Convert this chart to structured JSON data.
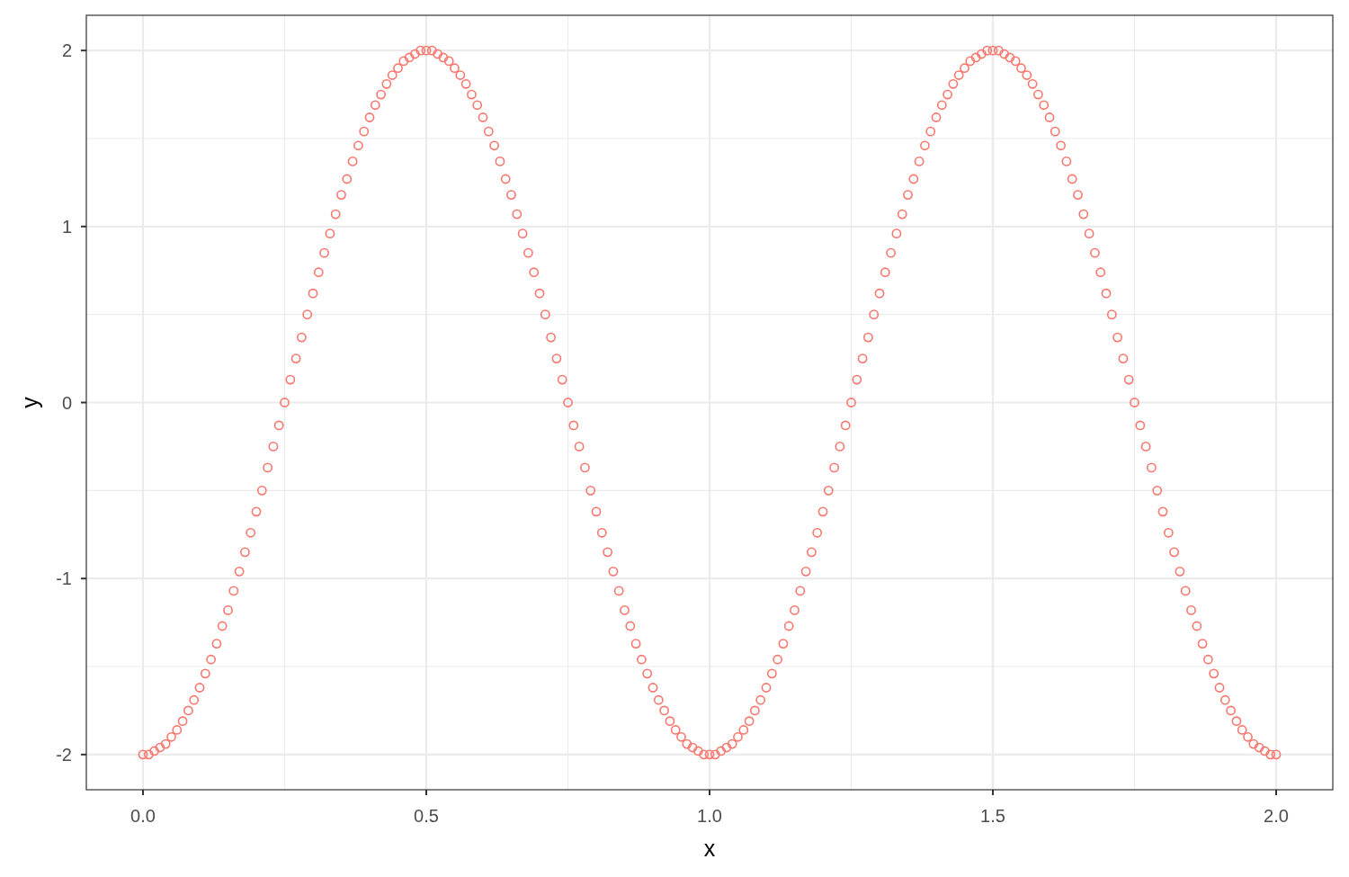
{
  "chart_data": {
    "type": "scatter",
    "xlabel": "x",
    "ylabel": "y",
    "xlim": [
      -0.1,
      2.1
    ],
    "ylim": [
      -2.2,
      2.2
    ],
    "xticks": [
      {
        "value": 0,
        "label": "0.0"
      },
      0.5,
      {
        "value": 1,
        "label": "1.0"
      },
      1.5,
      {
        "value": 2,
        "label": "2.0"
      }
    ],
    "yticks": [
      -2,
      -1,
      0,
      1,
      2
    ],
    "grid": true,
    "marker": "circle",
    "x": [
      0,
      0.01,
      0.02,
      0.03,
      0.04,
      0.05,
      0.06,
      0.07,
      0.08,
      0.09,
      0.1,
      0.11,
      0.12,
      0.13,
      0.14,
      0.15,
      0.16,
      0.17,
      0.18,
      0.19,
      0.2,
      0.21,
      0.22,
      0.23,
      0.24,
      0.25,
      0.26,
      0.27,
      0.28,
      0.29,
      0.3,
      0.31,
      0.32,
      0.33,
      0.34,
      0.35,
      0.36,
      0.37,
      0.38,
      0.39,
      0.4,
      0.41,
      0.42,
      0.43,
      0.44,
      0.45,
      0.46,
      0.47,
      0.48,
      0.49,
      0.5,
      0.51,
      0.52,
      0.53,
      0.54,
      0.55,
      0.56,
      0.57,
      0.58,
      0.59,
      0.6,
      0.61,
      0.62,
      0.63,
      0.64,
      0.65,
      0.66,
      0.67,
      0.68,
      0.69,
      0.7,
      0.71,
      0.72,
      0.73,
      0.74,
      0.75,
      0.76,
      0.77,
      0.78,
      0.79,
      0.8,
      0.81,
      0.82,
      0.83,
      0.84,
      0.85,
      0.86,
      0.87,
      0.88,
      0.89,
      0.9,
      0.91,
      0.92,
      0.93,
      0.94,
      0.95,
      0.96,
      0.97,
      0.98,
      0.99,
      1,
      1.01,
      1.02,
      1.03,
      1.04,
      1.05,
      1.06,
      1.07,
      1.08,
      1.09,
      1.1,
      1.11,
      1.12,
      1.13,
      1.14,
      1.15,
      1.16,
      1.17,
      1.18,
      1.19,
      1.2,
      1.21,
      1.22,
      1.23,
      1.24,
      1.25,
      1.26,
      1.27,
      1.28,
      1.29,
      1.3,
      1.31,
      1.32,
      1.33,
      1.34,
      1.35,
      1.36,
      1.37,
      1.38,
      1.39,
      1.4,
      1.41,
      1.42,
      1.43,
      1.44,
      1.45,
      1.46,
      1.47,
      1.48,
      1.49,
      1.5,
      1.51,
      1.52,
      1.53,
      1.54,
      1.55,
      1.56,
      1.57,
      1.58,
      1.59,
      1.6,
      1.61,
      1.62,
      1.63,
      1.64,
      1.65,
      1.66,
      1.67,
      1.68,
      1.69,
      1.7,
      1.71,
      1.72,
      1.73,
      1.74,
      1.75,
      1.76,
      1.77,
      1.78,
      1.79,
      1.8,
      1.81,
      1.82,
      1.83,
      1.84,
      1.85,
      1.86,
      1.87,
      1.88,
      1.89,
      1.9,
      1.91,
      1.92,
      1.93,
      1.94,
      1.95,
      1.96,
      1.97,
      1.98,
      1.99,
      2
    ],
    "series": [
      {
        "color": "#f8766d",
        "values": [
          -2,
          -2,
          -1.98,
          -1.96,
          -1.94,
          -1.9,
          -1.86,
          -1.81,
          -1.75,
          -1.69,
          -1.62,
          -1.54,
          -1.46,
          -1.37,
          -1.27,
          -1.18,
          -1.07,
          -0.96,
          -0.85,
          -0.74,
          -0.62,
          -0.5,
          -0.37,
          -0.25,
          -0.13,
          0,
          0.13,
          0.25,
          0.37,
          0.5,
          0.62,
          0.74,
          0.85,
          0.96,
          1.07,
          1.18,
          1.27,
          1.37,
          1.46,
          1.54,
          1.62,
          1.69,
          1.75,
          1.81,
          1.86,
          1.9,
          1.94,
          1.96,
          1.98,
          2,
          2,
          2,
          1.98,
          1.96,
          1.94,
          1.9,
          1.86,
          1.81,
          1.75,
          1.69,
          1.62,
          1.54,
          1.46,
          1.37,
          1.27,
          1.18,
          1.07,
          0.96,
          0.85,
          0.74,
          0.62,
          0.5,
          0.37,
          0.25,
          0.13,
          0,
          -0.13,
          -0.25,
          -0.37,
          -0.5,
          -0.62,
          -0.74,
          -0.85,
          -0.96,
          -1.07,
          -1.18,
          -1.27,
          -1.37,
          -1.46,
          -1.54,
          -1.62,
          -1.69,
          -1.75,
          -1.81,
          -1.86,
          -1.9,
          -1.94,
          -1.96,
          -1.98,
          -2,
          -2,
          -2,
          -1.98,
          -1.96,
          -1.94,
          -1.9,
          -1.86,
          -1.81,
          -1.75,
          -1.69,
          -1.62,
          -1.54,
          -1.46,
          -1.37,
          -1.27,
          -1.18,
          -1.07,
          -0.96,
          -0.85,
          -0.74,
          -0.62,
          -0.5,
          -0.37,
          -0.25,
          -0.13,
          0,
          0.13,
          0.25,
          0.37,
          0.5,
          0.62,
          0.74,
          0.85,
          0.96,
          1.07,
          1.18,
          1.27,
          1.37,
          1.46,
          1.54,
          1.62,
          1.69,
          1.75,
          1.81,
          1.86,
          1.9,
          1.94,
          1.96,
          1.98,
          2,
          2,
          2,
          1.98,
          1.96,
          1.94,
          1.9,
          1.86,
          1.81,
          1.75,
          1.69,
          1.62,
          1.54,
          1.46,
          1.37,
          1.27,
          1.18,
          1.07,
          0.96,
          0.85,
          0.74,
          0.62,
          0.5,
          0.37,
          0.25,
          0.13,
          0,
          -0.13,
          -0.25,
          -0.37,
          -0.5,
          -0.62,
          -0.74,
          -0.85,
          -0.96,
          -1.07,
          -1.18,
          -1.27,
          -1.37,
          -1.46,
          -1.54,
          -1.62,
          -1.69,
          -1.75,
          -1.81,
          -1.86,
          -1.9,
          -1.94,
          -1.96,
          -1.98,
          -2,
          -2
        ]
      }
    ]
  }
}
